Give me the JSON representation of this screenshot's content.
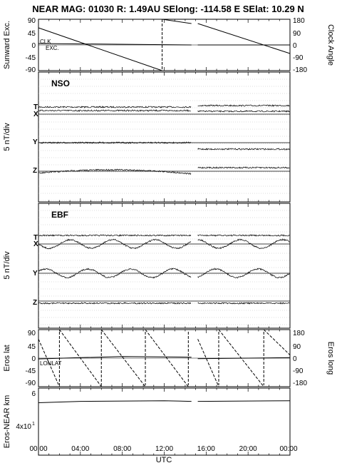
{
  "title": "NEAR MAG: 01030  R: 1.49AU  SElong: -114.58 E  SElat:   10.29 N",
  "chart_data": {
    "type": "line",
    "x_ticks": [
      "00:00",
      "04:00",
      "08:00",
      "12:00",
      "16:00",
      "20:00",
      "00:00"
    ],
    "xlabel": "UTC",
    "panels": [
      {
        "id": "top",
        "left_label": "Sunward Exc.",
        "right_label": "Clock Angle",
        "left_ticks": [
          "90",
          "45",
          "0",
          "-45",
          "-90"
        ],
        "right_ticks": [
          "180",
          "90",
          "0",
          "-90",
          "-180"
        ],
        "inner_labels": [
          "CLK",
          "EXC."
        ],
        "series": [
          {
            "label": "CLK",
            "segments": [
              [
                [
                  0.0,
                  120
                ],
                [
                  11.8,
                  -180
                ]
              ],
              [
                [
                  11.8,
                  180
                ],
                [
                  14.6,
                  150
                ]
              ],
              [
                [
                  15.2,
                  150
                ],
                [
                  24.0,
                  -60
                ]
              ]
            ]
          },
          {
            "label": "EXC.",
            "segments": [
              [
                [
                  0.0,
                  10
                ],
                [
                  14.6,
                  0
                ]
              ],
              [
                [
                  15.2,
                  0
                ],
                [
                  24.0,
                  0
                ]
              ]
            ]
          }
        ]
      },
      {
        "id": "nso",
        "panel_label": "NSO",
        "left_label": "5 nT/div",
        "components": [
          "T",
          "X",
          "Y",
          "Z"
        ]
      },
      {
        "id": "ebf",
        "panel_label": "EBF",
        "left_label": "5 nT/div",
        "components": [
          "T",
          "X",
          "Y",
          "Z"
        ]
      },
      {
        "id": "eros",
        "left_label": "Eros lat",
        "right_label": "Eros long",
        "left_ticks": [
          "90",
          "45",
          "0",
          "-45",
          "-90"
        ],
        "right_ticks": [
          "180",
          "90",
          "0",
          "-90",
          "-180"
        ],
        "inner_labels": [
          "LONLAT"
        ],
        "series": [
          {
            "label": "LON",
            "segments": [
              [
                [
                  0.0,
                  120
                ],
                [
                  2.0,
                  -180
                ]
              ],
              [
                [
                  2.0,
                  180
                ],
                [
                  6.0,
                  -180
                ]
              ],
              [
                [
                  6.0,
                  180
                ],
                [
                  10.2,
                  -180
                ]
              ],
              [
                [
                  10.2,
                  180
                ],
                [
                  14.3,
                  -180
                ]
              ],
              [
                [
                  15.2,
                  120
                ],
                [
                  17.2,
                  -180
                ]
              ],
              [
                [
                  17.2,
                  180
                ],
                [
                  21.5,
                  -180
                ]
              ],
              [
                [
                  21.5,
                  180
                ],
                [
                  24.0,
                  20
                ]
              ]
            ]
          },
          {
            "label": "LAT",
            "segments": [
              [
                [
                  0.0,
                  -5
                ],
                [
                  4.0,
                  3
                ],
                [
                  8.0,
                  10
                ],
                [
                  12.0,
                  8
                ],
                [
                  14.6,
                  6
                ]
              ],
              [
                [
                  15.2,
                  -3
                ],
                [
                  20.0,
                  0
                ],
                [
                  24.0,
                  3
                ]
              ]
            ]
          }
        ]
      },
      {
        "id": "dist",
        "left_label": "Eros-NEAR km",
        "left_ticks": [
          "6",
          "4x10",
          "1"
        ],
        "series": [
          {
            "label": "Eros-NEAR",
            "segments": [
              [
                [
                  0.0,
                  0.25
                ],
                [
                  4.0,
                  0.27
                ],
                [
                  12.0,
                  0.28
                ],
                [
                  14.6,
                  0.27
                ]
              ],
              [
                [
                  15.2,
                  0.27
                ],
                [
                  24.0,
                  0.28
                ]
              ]
            ]
          }
        ]
      }
    ]
  }
}
